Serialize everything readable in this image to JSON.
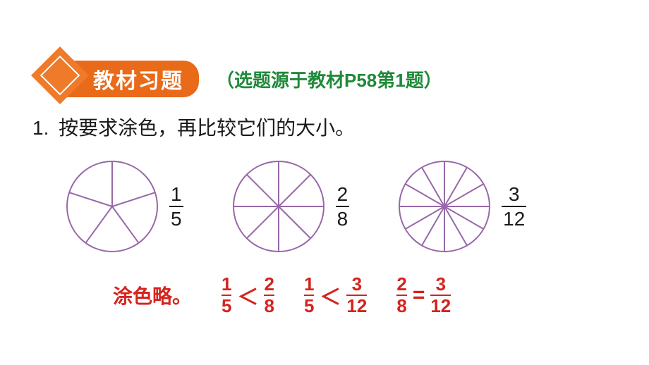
{
  "header": {
    "pill_text": "教材习题",
    "source_note": "（选题源于教材P58第1题）",
    "colors": {
      "pill_bg": "#e96a18",
      "diamond": "#ee7a2a",
      "source": "#1f8a39"
    }
  },
  "question": {
    "number": "1.",
    "text": "按要求涂色，再比较它们的大小。"
  },
  "circles": {
    "stroke": "#9768a8",
    "radius": 64,
    "items": [
      {
        "slices": 5,
        "frac_num": "1",
        "frac_den": "5"
      },
      {
        "slices": 8,
        "frac_num": "2",
        "frac_den": "8"
      },
      {
        "slices": 12,
        "frac_num": "3",
        "frac_den": "12"
      }
    ]
  },
  "answer": {
    "label": "涂色略。",
    "color": "#d4241e",
    "comparisons": [
      {
        "a_num": "1",
        "a_den": "5",
        "op": "＜",
        "b_num": "2",
        "b_den": "8"
      },
      {
        "a_num": "1",
        "a_den": "5",
        "op": "＜",
        "b_num": "3",
        "b_den": "12"
      },
      {
        "a_num": "2",
        "a_den": "8",
        "op": "=",
        "b_num": "3",
        "b_den": "12"
      }
    ]
  }
}
